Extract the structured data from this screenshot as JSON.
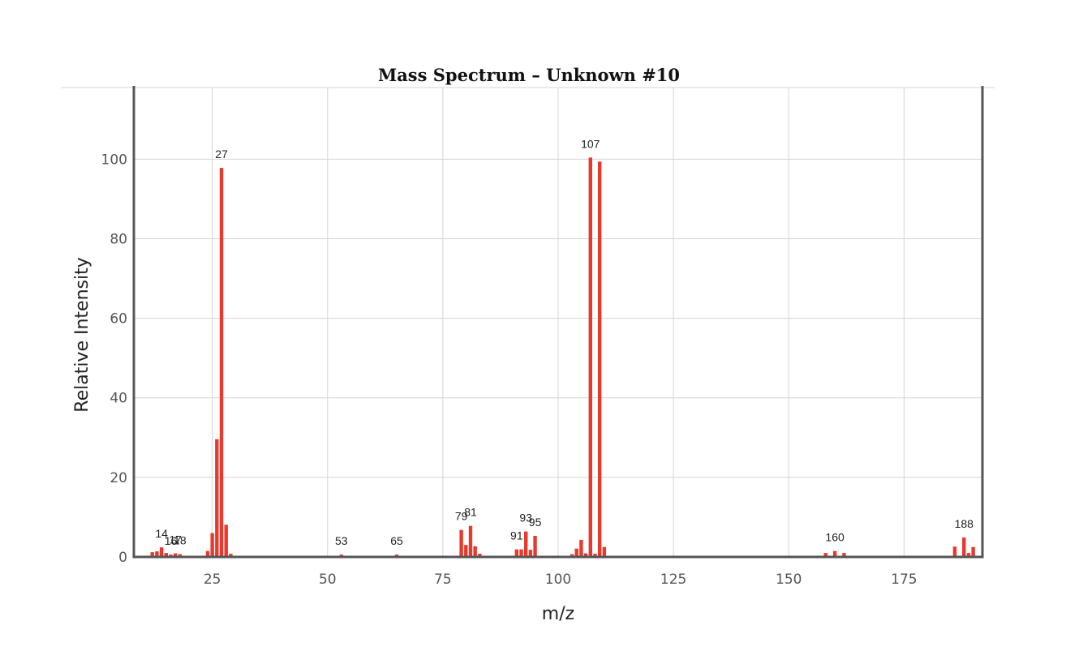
{
  "chart_data": {
    "type": "bar",
    "title": "Mass Spectrum – Unknown #10",
    "xlabel": "m/z",
    "ylabel": "Relative Intensity",
    "xlim": [
      8,
      192
    ],
    "ylim": [
      0,
      118
    ],
    "x_ticks": [
      25,
      50,
      75,
      100,
      125,
      150,
      175
    ],
    "y_ticks": [
      0,
      20,
      40,
      60,
      80,
      100
    ],
    "grid": true,
    "bar_color": "#e8392c",
    "peaks": [
      {
        "mz": 12,
        "intensity": 1.2
      },
      {
        "mz": 13,
        "intensity": 1.4
      },
      {
        "mz": 14,
        "intensity": 2.4
      },
      {
        "mz": 15,
        "intensity": 1.0
      },
      {
        "mz": 16,
        "intensity": 0.6
      },
      {
        "mz": 17,
        "intensity": 0.9
      },
      {
        "mz": 18,
        "intensity": 0.7
      },
      {
        "mz": 24,
        "intensity": 1.5
      },
      {
        "mz": 25,
        "intensity": 6.0
      },
      {
        "mz": 26,
        "intensity": 29.6
      },
      {
        "mz": 27,
        "intensity": 97.8
      },
      {
        "mz": 28,
        "intensity": 8.1
      },
      {
        "mz": 29,
        "intensity": 0.8
      },
      {
        "mz": 53,
        "intensity": 0.6
      },
      {
        "mz": 65,
        "intensity": 0.6
      },
      {
        "mz": 79,
        "intensity": 6.8
      },
      {
        "mz": 80,
        "intensity": 3.0
      },
      {
        "mz": 81,
        "intensity": 7.8
      },
      {
        "mz": 82,
        "intensity": 2.7
      },
      {
        "mz": 83,
        "intensity": 0.8
      },
      {
        "mz": 91,
        "intensity": 1.9
      },
      {
        "mz": 92,
        "intensity": 1.9
      },
      {
        "mz": 93,
        "intensity": 6.4
      },
      {
        "mz": 94,
        "intensity": 1.8
      },
      {
        "mz": 95,
        "intensity": 5.3
      },
      {
        "mz": 103,
        "intensity": 0.7
      },
      {
        "mz": 104,
        "intensity": 2.1
      },
      {
        "mz": 105,
        "intensity": 4.3
      },
      {
        "mz": 106,
        "intensity": 0.9
      },
      {
        "mz": 107,
        "intensity": 100.4
      },
      {
        "mz": 108,
        "intensity": 0.8
      },
      {
        "mz": 109,
        "intensity": 99.4
      },
      {
        "mz": 110,
        "intensity": 2.5
      },
      {
        "mz": 158,
        "intensity": 1.0
      },
      {
        "mz": 160,
        "intensity": 1.5
      },
      {
        "mz": 162,
        "intensity": 1.0
      },
      {
        "mz": 186,
        "intensity": 2.6
      },
      {
        "mz": 188,
        "intensity": 4.9
      },
      {
        "mz": 189,
        "intensity": 1.0
      },
      {
        "mz": 190,
        "intensity": 2.5
      }
    ],
    "peak_labels": [
      {
        "mz": 14,
        "text": "14"
      },
      {
        "mz": 16,
        "text": "16"
      },
      {
        "mz": 17,
        "text": "17"
      },
      {
        "mz": 18,
        "text": "18"
      },
      {
        "mz": 27,
        "text": "27"
      },
      {
        "mz": 53,
        "text": "53"
      },
      {
        "mz": 65,
        "text": "65"
      },
      {
        "mz": 79,
        "text": "79"
      },
      {
        "mz": 81,
        "text": "81"
      },
      {
        "mz": 91,
        "text": "91"
      },
      {
        "mz": 93,
        "text": "93"
      },
      {
        "mz": 95,
        "text": "95"
      },
      {
        "mz": 107,
        "text": "107"
      },
      {
        "mz": 160,
        "text": "160"
      },
      {
        "mz": 188,
        "text": "188"
      }
    ]
  }
}
